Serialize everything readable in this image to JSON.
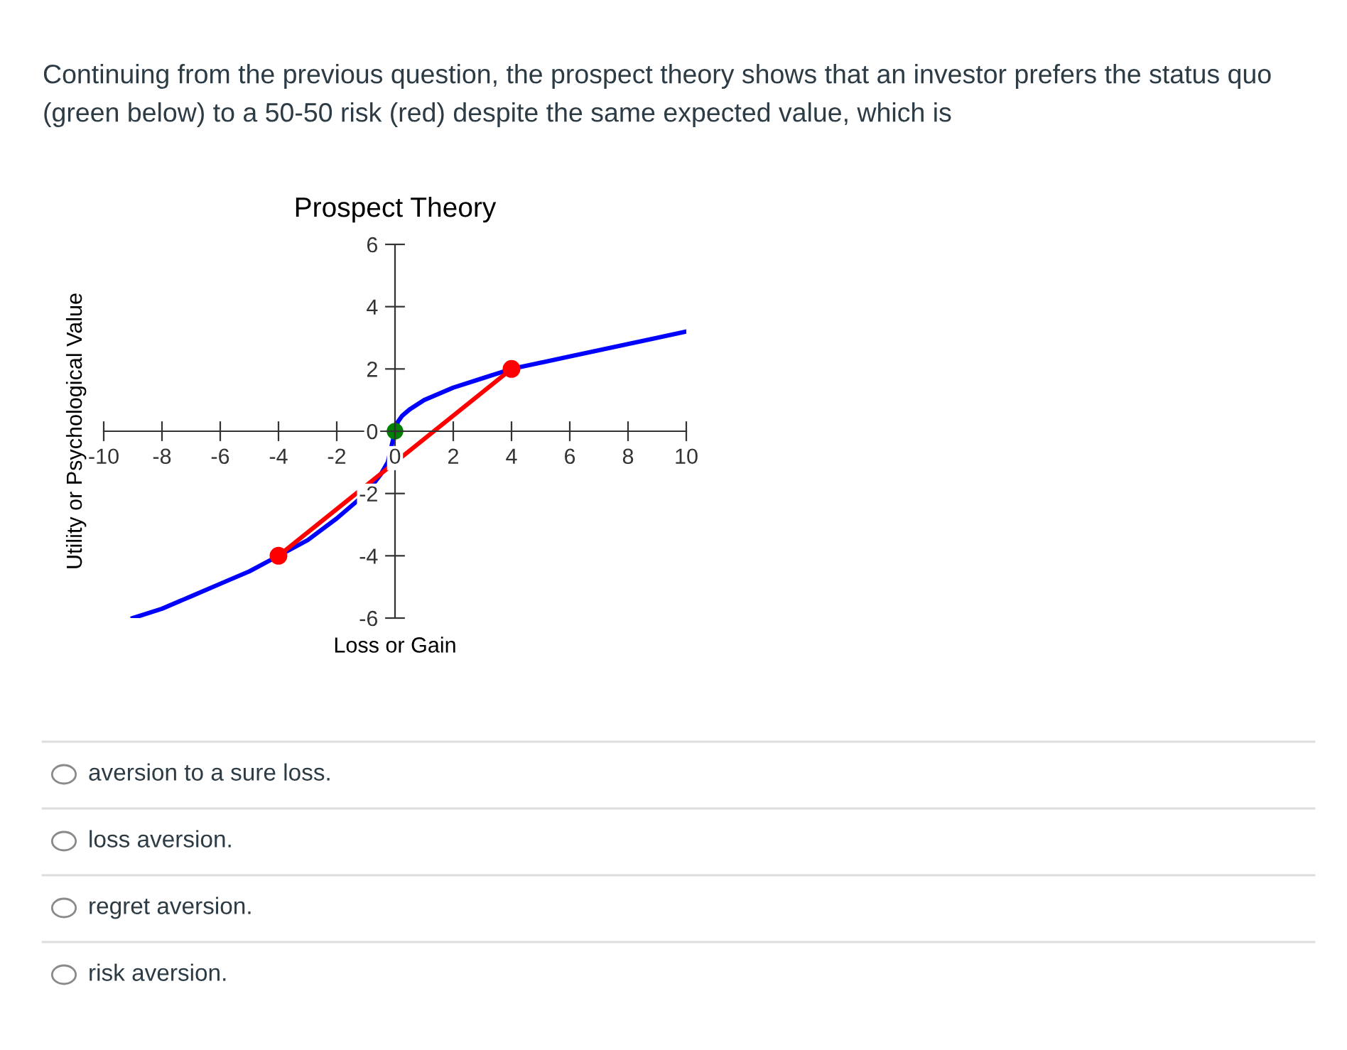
{
  "chart_data": {
    "type": "line",
    "title": "Prospect Theory",
    "xlabel": "Loss or Gain",
    "ylabel": "Utility or Psychological Value",
    "annotations": [
      "Continuing from the previous question, the prospect theory shows that an investor prefers the status quo (green below) to a 50-50 risk (red) despite the same expected value, which is",
      "aversion to a sure loss.",
      "loss aversion.",
      "regret aversion.",
      "risk aversion."
    ],
    "series": [
      {
        "color": "#0000ff",
        "marker": "none",
        "x": [
          -9,
          -8,
          -7,
          -6,
          -5,
          -4,
          -3,
          -2,
          -1.5,
          -1,
          -0.5,
          -0.25,
          0,
          0.1,
          0.25,
          0.5,
          1,
          1.5,
          2,
          3,
          4,
          5,
          6,
          7,
          8,
          9,
          10
        ],
        "values": [
          -6,
          -5.7,
          -5.3,
          -4.9,
          -4.5,
          -4,
          -3.5,
          -2.8,
          -2.4,
          -2,
          -1.4,
          -1,
          0,
          0.3,
          0.5,
          0.7,
          1,
          1.2,
          1.4,
          1.7,
          2,
          2.2,
          2.4,
          2.6,
          2.8,
          3,
          3.2
        ]
      },
      {
        "color": "#ff0000",
        "marker": "circle",
        "x": [
          -4,
          4
        ],
        "values": [
          -4,
          2
        ]
      },
      {
        "type": "scatter",
        "color": "#008000",
        "marker": "circle",
        "x": [
          0
        ],
        "values": [
          0
        ]
      }
    ],
    "xlim": [
      -10,
      10
    ],
    "ylim": [
      -6,
      6
    ],
    "xticks": [
      -10,
      -8,
      -6,
      -4,
      -2,
      0,
      2,
      4,
      6,
      8,
      10
    ],
    "yticks": [
      -6,
      -4,
      -2,
      0,
      2,
      4,
      6
    ],
    "grid": false,
    "legend": false
  }
}
